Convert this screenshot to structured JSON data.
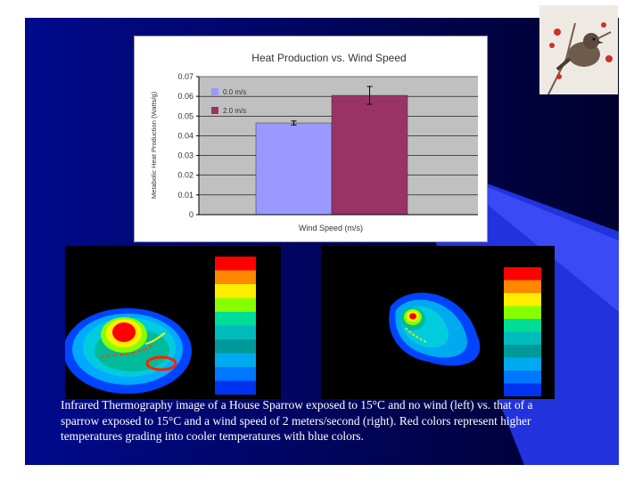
{
  "colors": {
    "slide_gradient_left": "#000a8c",
    "slide_gradient_right": "#00002e",
    "accent_stripe": "#3344ee",
    "plot_area": "#c0c0c0",
    "series_0": "#9999ff",
    "series_1": "#993366"
  },
  "chart_data": {
    "type": "bar",
    "title": "Heat Production vs. Wind Speed",
    "xlabel": "Wind Speed (m/s)",
    "ylabel": "Metabolic Heat Production (Watts/g)",
    "ylim": [
      0,
      0.07
    ],
    "yticks": [
      "0",
      "0.01",
      "0.02",
      "0.03",
      "0.04",
      "0.05",
      "0.06",
      "0.07"
    ],
    "grid": true,
    "legend_position": "top-left",
    "series": [
      {
        "name": "0.0 m/s",
        "value": 0.0465,
        "error": 0.001
      },
      {
        "name": "2.0 m/s",
        "value": 0.0605,
        "error": 0.0045
      }
    ]
  },
  "thermography": {
    "left": {
      "scale_colors": [
        "#ff0000",
        "#ff8800",
        "#ffee00",
        "#88ff00",
        "#00dd99",
        "#00bbbb",
        "#009999",
        "#00aaee",
        "#0077ff",
        "#0033ee"
      ]
    },
    "right": {
      "scale_colors": [
        "#ff0000",
        "#ff8800",
        "#ffee00",
        "#88ff00",
        "#00dd99",
        "#00bbbb",
        "#009999",
        "#00aaee",
        "#0077ff",
        "#0033ee"
      ]
    }
  },
  "caption": {
    "line1": "Infrared Thermography image of a House Sparrow exposed to 15°C and no wind (left) vs. that of a",
    "line2": "sparrow exposed to 15°C and a wind speed of 2 meters/second (right).  Red colors represent higher",
    "line3": "temperatures grading into cooler temperatures with blue colors."
  },
  "bird_photo_icon": "sparrow-photo-icon"
}
